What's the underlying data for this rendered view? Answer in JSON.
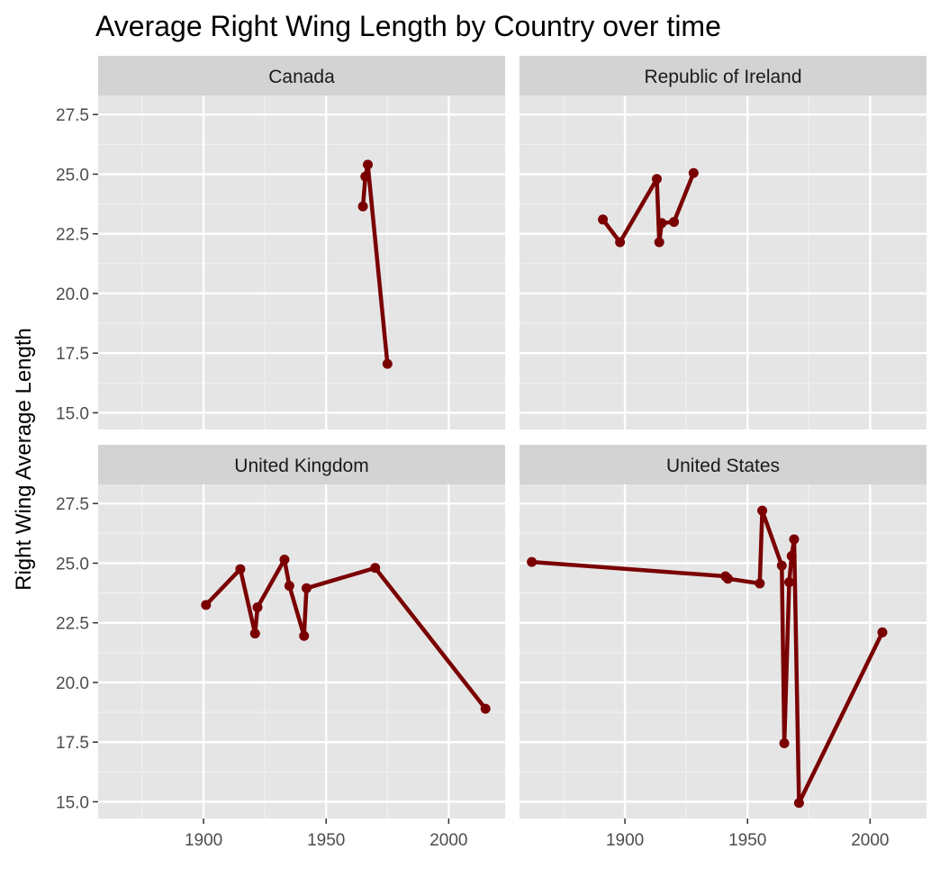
{
  "chart_data": {
    "type": "line",
    "title": "Average Right Wing Length by Country over time",
    "xlabel": "",
    "ylabel": "Right Wing Average Length",
    "xlim": [
      1857,
      2023
    ],
    "ylim": [
      14.3,
      28.3
    ],
    "x_ticks": [
      1900,
      1950,
      2000
    ],
    "y_ticks": [
      15.0,
      17.5,
      20.0,
      22.5,
      25.0,
      27.5
    ],
    "y_tick_labels": [
      "15.0",
      "17.5",
      "20.0",
      "22.5",
      "25.0",
      "27.5"
    ],
    "grid": true,
    "facet_by": "country",
    "line_color": "#7a0000",
    "panel_background": "#e5e5e5",
    "strip_background": "#d3d3d3",
    "panels": [
      {
        "label": "Canada",
        "x": [
          1965,
          1966,
          1967,
          1975
        ],
        "y": [
          23.65,
          24.9,
          25.4,
          17.05
        ]
      },
      {
        "label": "Republic of Ireland",
        "x": [
          1891,
          1898,
          1913,
          1914,
          1915,
          1920,
          1928
        ],
        "y": [
          23.1,
          22.15,
          24.8,
          22.15,
          22.95,
          23.0,
          25.05
        ]
      },
      {
        "label": "United Kingdom",
        "x": [
          1901,
          1915,
          1921,
          1922,
          1933,
          1935,
          1941,
          1942,
          1970,
          2015
        ],
        "y": [
          23.25,
          24.75,
          22.05,
          23.15,
          25.15,
          24.05,
          21.95,
          23.95,
          24.8,
          18.9
        ]
      },
      {
        "label": "United States",
        "x": [
          1862,
          1941,
          1942,
          1955,
          1956,
          1964,
          1965,
          1967,
          1968,
          1969,
          1971,
          2005
        ],
        "y": [
          25.05,
          24.45,
          24.35,
          24.15,
          27.2,
          24.9,
          17.45,
          24.2,
          25.3,
          26.0,
          14.95,
          22.1
        ]
      }
    ]
  }
}
